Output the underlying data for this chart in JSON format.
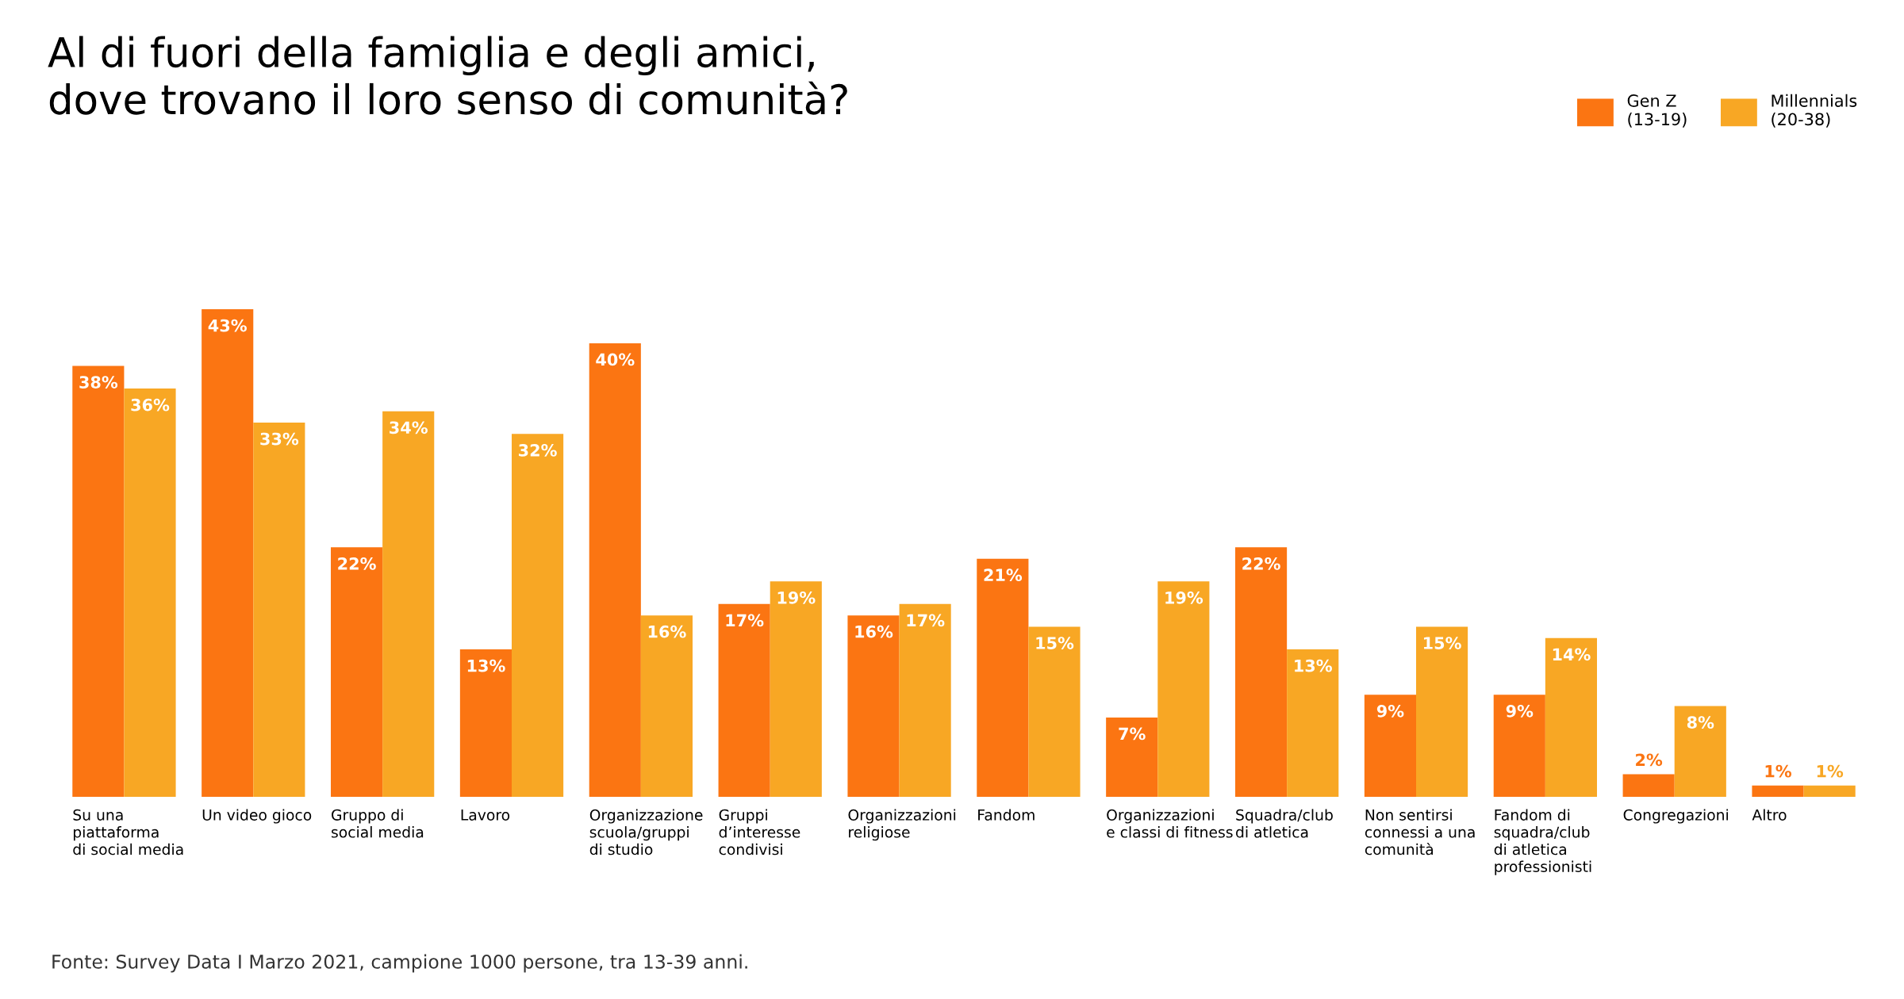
{
  "chart_data": {
    "type": "bar",
    "title": "Al di fuori della famiglia e degli amici,\ndove trovano il loro senso di comunità?",
    "categories": [
      "Su una\npiattaforma\ndi social media",
      "Un video gioco",
      "Gruppo di\nsocial media",
      "Lavoro",
      "Organizzazione\nscuola/gruppi\ndi studio",
      "Gruppi\nd’interesse\ncondivisi",
      "Organizzazioni\nreligiose",
      "Fandom",
      "Organizzazioni\ne classi di fitness",
      "Squadra/club\ndi atletica",
      "Non sentirsi\nconnessi a una\ncomunità",
      "Fandom di\nsquadra/club\ndi atletica\nprofessionisti",
      "Congregazioni",
      "Altro"
    ],
    "series": [
      {
        "name": "Gen Z\n(13-19)",
        "color": "#fb7512",
        "values": [
          38,
          43,
          22,
          13,
          40,
          17,
          16,
          21,
          7,
          22,
          9,
          9,
          2,
          1
        ],
        "value_labels": [
          "38%",
          "43%",
          "22%",
          "13%",
          "40%",
          "17%",
          "16%",
          "21%",
          "7%",
          "22%",
          "9%",
          "9%",
          "2%",
          "1%"
        ]
      },
      {
        "name": "Millennials\n(20-38)",
        "color": "#f8a724",
        "values": [
          36,
          33,
          34,
          32,
          16,
          19,
          17,
          15,
          19,
          13,
          15,
          14,
          8,
          1
        ],
        "value_labels": [
          "36%",
          "33%",
          "34%",
          "32%",
          "16%",
          "19%",
          "17%",
          "15%",
          "19%",
          "13%",
          "15%",
          "14%",
          "8%",
          "1%"
        ]
      }
    ],
    "legend": "top right",
    "annotations": [
      "Fonte: Survey Data I Marzo 2021, campione 1000 persone, tra 13-39 anni."
    ]
  }
}
